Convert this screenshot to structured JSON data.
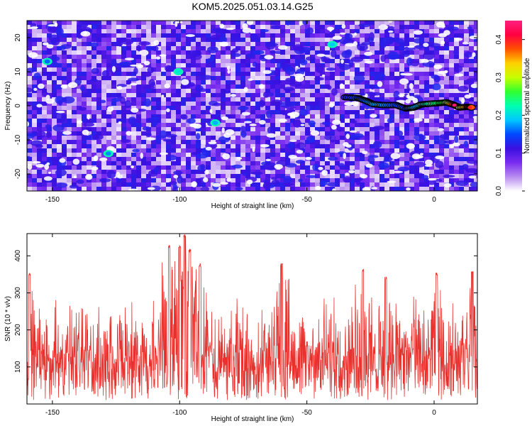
{
  "title": "KOM5.2025.051.03.14.G25",
  "chart_data": [
    {
      "type": "heatmap",
      "xlabel": "Height of straight line (km)",
      "ylabel": "Frequency (Hz)",
      "xlim": [
        -160,
        17
      ],
      "ylim": [
        -25,
        25
      ],
      "xticks": [
        -150,
        -100,
        -50,
        0
      ],
      "yticks": [
        -20,
        -10,
        0,
        10,
        20
      ],
      "xtick_labels": [
        "-150",
        "-100",
        "-50",
        "0"
      ],
      "ytick_labels": [
        "-20",
        "-10",
        "0",
        "10",
        "20"
      ],
      "colorbar": {
        "label": "Normalized spectral amplitude",
        "range": [
          0,
          0.45
        ],
        "ticks": [
          0.0,
          0.1,
          0.2,
          0.3,
          0.4
        ],
        "tick_labels": [
          "0.0",
          "0.1",
          "0.2",
          "0.3",
          "0.4"
        ],
        "colors": [
          "#ffffff",
          "#b88cf0",
          "#7a2cf0",
          "#3a10e0",
          "#0048ff",
          "#00c8ff",
          "#00ffb0",
          "#30ff30",
          "#c8ff00",
          "#ffd000",
          "#ff5000",
          "#ff0040",
          "#ff2080"
        ]
      },
      "signal_track": {
        "description": "high amplitude band near 0 Hz",
        "x": [
          -35,
          -30,
          -27,
          -24,
          -20,
          -15,
          -11,
          -8,
          -5,
          -2,
          2,
          5,
          8,
          10,
          13,
          15
        ],
        "y": [
          2.5,
          2.3,
          1.5,
          0.5,
          0.2,
          0.2,
          -0.8,
          -0.5,
          0.4,
          0.6,
          0.8,
          1.0,
          0.2,
          -0.5,
          -0.3,
          -0.5
        ],
        "amplitude": [
          0.12,
          0.14,
          0.16,
          0.18,
          0.17,
          0.15,
          0.14,
          0.18,
          0.2,
          0.22,
          0.24,
          0.27,
          0.4,
          0.3,
          0.35,
          0.38
        ]
      },
      "hotspots": [
        {
          "x": -100.5,
          "y": 10,
          "amplitude": 0.12
        },
        {
          "x": -40,
          "y": 18,
          "amplitude": 0.1
        },
        {
          "x": -128,
          "y": -14,
          "amplitude": 0.08
        },
        {
          "x": -86,
          "y": -5,
          "amplitude": 0.09
        },
        {
          "x": -152,
          "y": 13,
          "amplitude": 0.07
        }
      ]
    },
    {
      "type": "line",
      "color": "#e8302c",
      "xlabel": "Height of straight line (km)",
      "ylabel": "SNR (10 * v/v)",
      "xlim": [
        -160,
        17
      ],
      "ylim": [
        0,
        460
      ],
      "xticks": [
        -150,
        -100,
        -50,
        0
      ],
      "yticks": [
        100,
        200,
        300,
        400
      ],
      "xtick_labels": [
        "-150",
        "-100",
        "-50",
        "0"
      ],
      "ytick_labels": [
        "100",
        "200",
        "300",
        "400"
      ],
      "envelope": {
        "baseline_mean": 115,
        "typical_max": 280,
        "peaks": [
          {
            "x": -159,
            "value": 355
          },
          {
            "x": -104,
            "value": 430
          },
          {
            "x": -100,
            "value": 430
          },
          {
            "x": -98,
            "value": 460
          },
          {
            "x": -96,
            "value": 420
          },
          {
            "x": -92,
            "value": 380
          },
          {
            "x": -60,
            "value": 380
          },
          {
            "x": -28,
            "value": 365
          },
          {
            "x": -19,
            "value": 345
          },
          {
            "x": 1,
            "value": 355
          },
          {
            "x": 15,
            "value": 360
          }
        ]
      }
    }
  ]
}
